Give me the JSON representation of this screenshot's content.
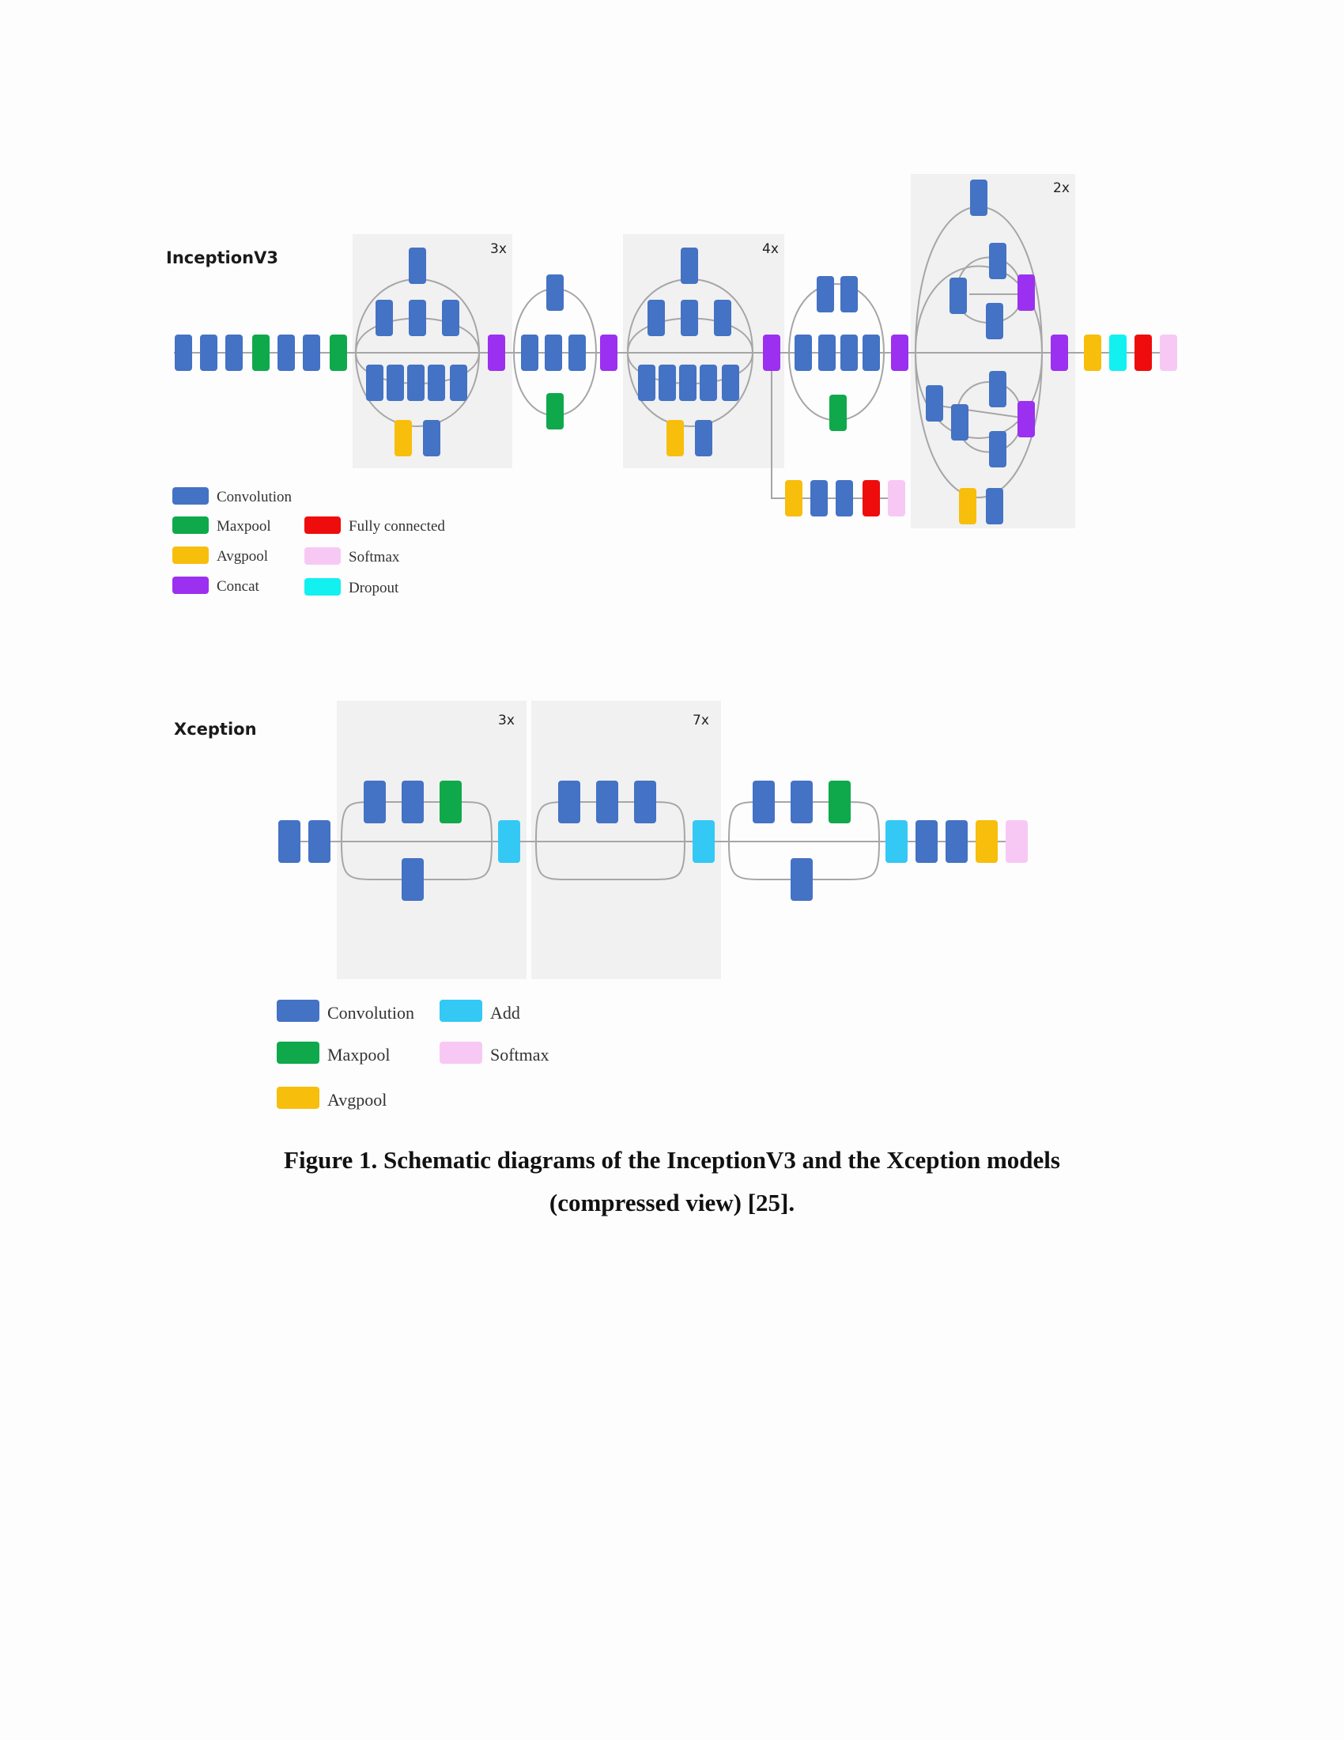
{
  "colors": {
    "convolution": "#4472c4",
    "maxpool": "#0fa94b",
    "avgpool": "#f7be0c",
    "concat": "#9b30f0",
    "fully_connected": "#ef0c0c",
    "softmax": "#f8c8f5",
    "dropout": "#12f0f0",
    "add": "#34c8f5"
  },
  "inception": {
    "title": "InceptionV3",
    "repeats": [
      "3x",
      "4x",
      "2x"
    ],
    "legend": [
      {
        "key": "convolution",
        "label": "Convolution"
      },
      {
        "key": "maxpool",
        "label": "Maxpool"
      },
      {
        "key": "avgpool",
        "label": "Avgpool"
      },
      {
        "key": "concat",
        "label": "Concat"
      },
      {
        "key": "fully_connected",
        "label": "Fully connected"
      },
      {
        "key": "softmax",
        "label": "Softmax"
      },
      {
        "key": "dropout",
        "label": "Dropout"
      }
    ]
  },
  "xception": {
    "title": "Xception",
    "repeats": [
      "3x",
      "7x"
    ],
    "legend": [
      {
        "key": "convolution",
        "label": "Convolution"
      },
      {
        "key": "maxpool",
        "label": "Maxpool"
      },
      {
        "key": "avgpool",
        "label": "Avgpool"
      },
      {
        "key": "add",
        "label": "Add"
      },
      {
        "key": "softmax",
        "label": "Softmax"
      }
    ]
  },
  "caption": {
    "line1": "Figure 1. Schematic diagrams of the InceptionV3 and the Xception models",
    "line2": "(compressed view) [25]."
  }
}
